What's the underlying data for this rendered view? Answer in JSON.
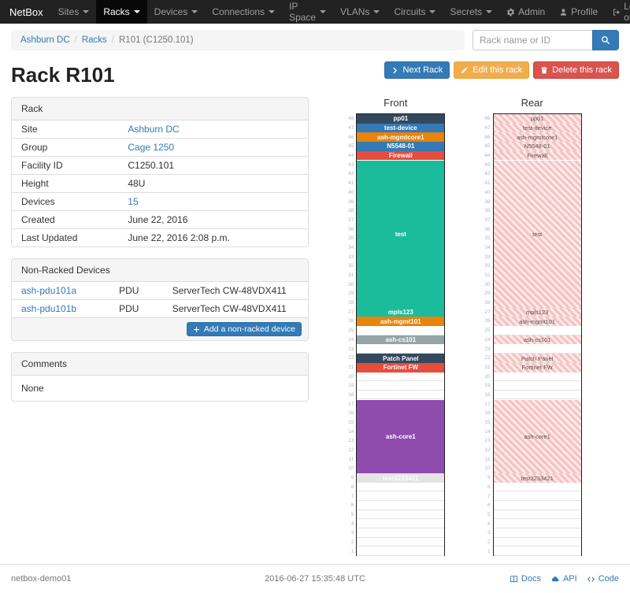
{
  "navbar": {
    "brand": "NetBox",
    "items": [
      {
        "label": "Sites"
      },
      {
        "label": "Racks",
        "active": true
      },
      {
        "label": "Devices"
      },
      {
        "label": "Connections"
      },
      {
        "label": "IP Space"
      },
      {
        "label": "VLANs"
      },
      {
        "label": "Circuits"
      },
      {
        "label": "Secrets"
      }
    ],
    "right_items": [
      {
        "label": "Admin",
        "icon": "gear-icon"
      },
      {
        "label": "Profile",
        "icon": "user-icon"
      },
      {
        "label": "Log out",
        "icon": "logout-icon"
      }
    ]
  },
  "breadcrumb": {
    "items": [
      {
        "label": "Ashburn DC",
        "link": true
      },
      {
        "label": "Racks",
        "link": true
      },
      {
        "label": "R101 (C1250.101)",
        "link": false
      }
    ]
  },
  "search": {
    "placeholder": "Rack name or ID"
  },
  "actions": {
    "next": "Next Rack",
    "edit": "Edit this rack",
    "delete": "Delete this rack"
  },
  "page": {
    "title": "Rack R101"
  },
  "rack_panel": {
    "title": "Rack",
    "rows": [
      {
        "label": "Site",
        "value": "Ashburn DC",
        "link": true
      },
      {
        "label": "Group",
        "value": "Cage 1250",
        "link": true
      },
      {
        "label": "Facility ID",
        "value": "C1250.101",
        "link": false
      },
      {
        "label": "Height",
        "value": "48U",
        "link": false
      },
      {
        "label": "Devices",
        "value": "15",
        "link": true
      },
      {
        "label": "Created",
        "value": "June 22, 2016",
        "link": false
      },
      {
        "label": "Last Updated",
        "value": "June 22, 2016 2:08 p.m.",
        "link": false
      }
    ]
  },
  "non_racked": {
    "title": "Non-Racked Devices",
    "rows": [
      {
        "name": "ash-pdu101a",
        "role": "PDU",
        "type": "ServerTech CW-48VDX411"
      },
      {
        "name": "ash-pdu101b",
        "role": "PDU",
        "type": "ServerTech CW-48VDX411"
      }
    ],
    "add_label": "Add a non-racked device"
  },
  "comments": {
    "title": "Comments",
    "body": "None"
  },
  "elevation": {
    "front_label": "Front",
    "rear_label": "Rear",
    "units_total": 48,
    "blocks": [
      {
        "top_unit": 48,
        "span": 1,
        "label": "pp01",
        "color": "#34495e"
      },
      {
        "top_unit": 47,
        "span": 1,
        "label": "test-device",
        "color": "#337ab7"
      },
      {
        "top_unit": 46,
        "span": 1,
        "label": "ash-mgmtcore1",
        "color": "#e8830c"
      },
      {
        "top_unit": 45,
        "span": 1,
        "label": "N5548-01",
        "color": "#337ab7"
      },
      {
        "top_unit": 44,
        "span": 1,
        "label": "Firewall",
        "color": "#e74c3c"
      },
      {
        "top_unit": 43,
        "span": 16,
        "label": "test",
        "color": "#1abc9c"
      },
      {
        "top_unit": 27,
        "span": 1,
        "label": "mpls123",
        "color": "#1abc9c"
      },
      {
        "top_unit": 26,
        "span": 1,
        "label": "ash-mgmt101",
        "color": "#e8830c"
      },
      {
        "top_unit": 24,
        "span": 1,
        "label": "ash-cs101",
        "color": "#95a5a6"
      },
      {
        "top_unit": 22,
        "span": 1,
        "label": "Patch Panel",
        "color": "#34495e"
      },
      {
        "top_unit": 21,
        "span": 1,
        "label": "Fortinet FW",
        "color": "#e74c3c"
      },
      {
        "top_unit": 17,
        "span": 8,
        "label": "ash-core1",
        "color": "#8f4bad"
      },
      {
        "top_unit": 9,
        "span": 1,
        "label": "test3233421",
        "color": "#e4e4e4",
        "text": "#fdfdfd"
      }
    ]
  },
  "footer": {
    "hostname": "netbox-demo01",
    "timestamp": "2016-06-27 15:35:48 UTC",
    "links": [
      {
        "label": "Docs",
        "icon": "book-icon"
      },
      {
        "label": "API",
        "icon": "cloud-icon"
      },
      {
        "label": "Code",
        "icon": "code-icon"
      }
    ]
  }
}
